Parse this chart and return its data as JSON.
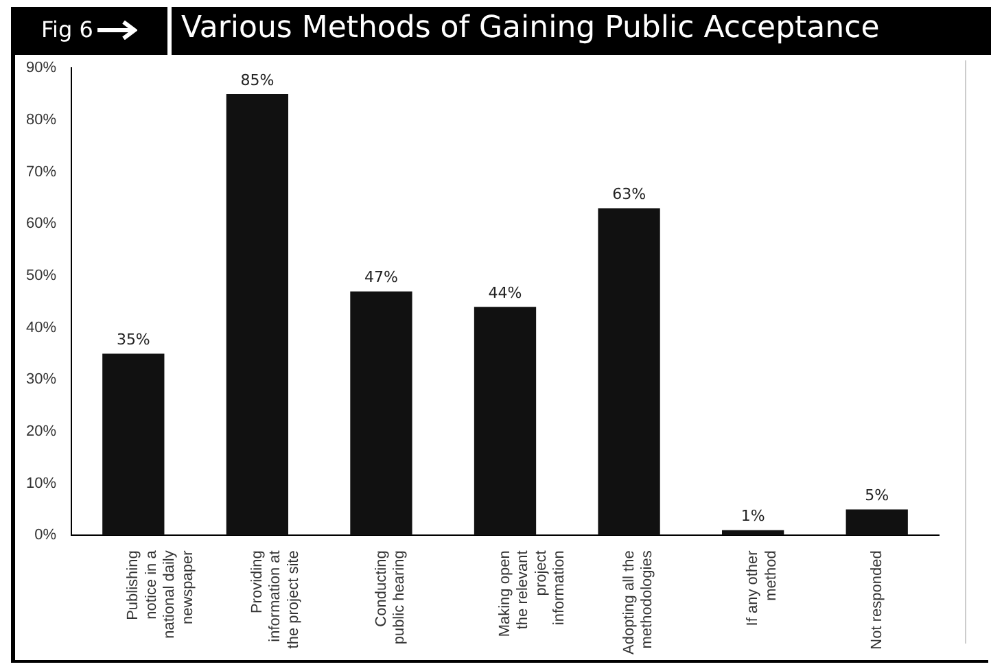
{
  "chart_data": {
    "type": "bar",
    "title": "Various Methods of Gaining Public Acceptance",
    "annotations": [
      "Fig 6"
    ],
    "categories": [
      "Publishing\nnotice in a\nnational daily\nnewspaper",
      "Providing\ninformation at\nthe project site",
      "Conducting\npublic hearing",
      "Making open\nthe relevant\nproject\ninformation",
      "Adopting all the\nmethodologies",
      "If any other\nmethod",
      "Not responded"
    ],
    "values": [
      35,
      85,
      47,
      44,
      63,
      1,
      5
    ],
    "value_labels": [
      "35%",
      "85%",
      "47%",
      "44%",
      "63%",
      "1%",
      "5%"
    ],
    "color": "#111111",
    "ylim": [
      0,
      90
    ],
    "yticks": [
      {
        "value": 0,
        "label": "0%"
      },
      {
        "value": 10,
        "label": "10%"
      },
      {
        "value": 20,
        "label": "20%"
      },
      {
        "value": 30,
        "label": "30%"
      },
      {
        "value": 40,
        "label": "40%"
      },
      {
        "value": 50,
        "label": "50%"
      },
      {
        "value": 60,
        "label": "60%"
      },
      {
        "value": 70,
        "label": "70%"
      },
      {
        "value": 80,
        "label": "80%"
      },
      {
        "value": 90,
        "label": "90%"
      }
    ],
    "grid": false,
    "legend": false
  }
}
